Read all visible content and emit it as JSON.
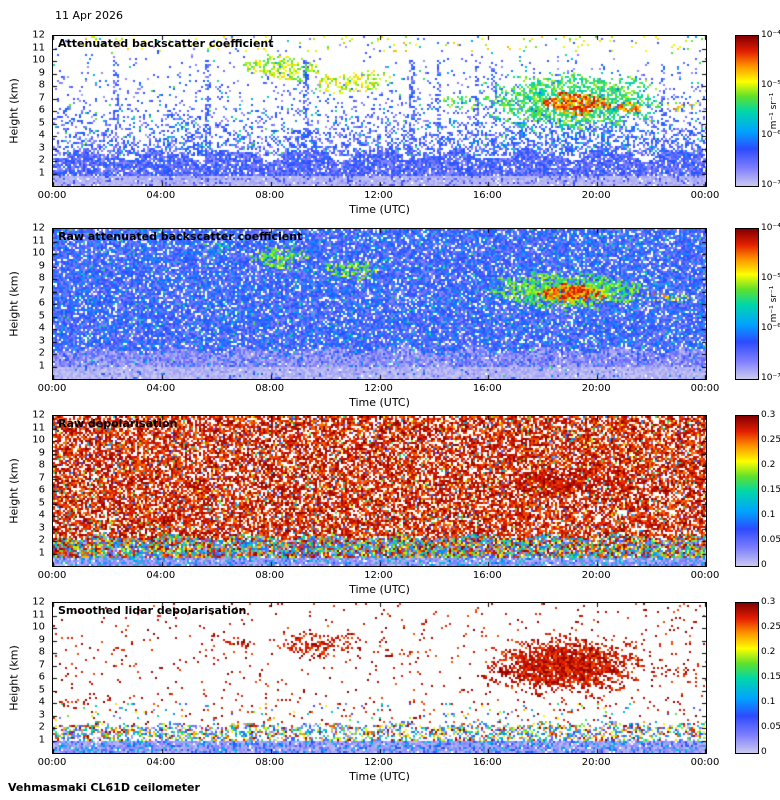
{
  "header": {
    "date": "11 Apr 2026"
  },
  "footer": {
    "instrument": "Vehmasmaki CL61D ceilometer"
  },
  "colormap": {
    "stops": [
      [
        0.0,
        205,
        205,
        238
      ],
      [
        0.12,
        128,
        128,
        255
      ],
      [
        0.25,
        45,
        75,
        255
      ],
      [
        0.37,
        0,
        165,
        255
      ],
      [
        0.5,
        0,
        215,
        170
      ],
      [
        0.6,
        95,
        225,
        45
      ],
      [
        0.7,
        255,
        255,
        0
      ],
      [
        0.8,
        255,
        150,
        0
      ],
      [
        0.9,
        228,
        30,
        0
      ],
      [
        1.0,
        133,
        0,
        0
      ]
    ]
  },
  "chart_data": [
    {
      "type": "heatmap",
      "title": "Attenuated backscatter coefficient",
      "xlabel": "Time (UTC)",
      "ylabel": "Height (km)",
      "xlim_hours": [
        0,
        24
      ],
      "ylim_km": [
        0,
        12
      ],
      "x_ticks": {
        "hours": [
          0,
          4,
          8,
          12,
          16,
          20,
          24
        ],
        "labels": [
          "00:00",
          "04:00",
          "08:00",
          "12:00",
          "16:00",
          "20:00",
          "00:00"
        ]
      },
      "y_ticks_km": [
        1,
        2,
        3,
        4,
        5,
        6,
        7,
        8,
        9,
        10,
        11,
        12
      ],
      "colorbar": {
        "scale": "log",
        "range": [
          1e-07,
          0.0001
        ],
        "unit": "m⁻¹ sr⁻¹",
        "tick_labels": [
          "10⁻⁴",
          "10⁻⁵",
          "10⁻⁶",
          "10⁻⁷"
        ],
        "tick_pos": [
          0,
          0.3333,
          0.6667,
          1
        ]
      },
      "seed": 101,
      "features": [
        {
          "kind": "fade",
          "t0": 0,
          "t1": 24,
          "h0": 2.4,
          "h1": 12,
          "d0": 0.6,
          "d1": 0.012,
          "v0": 0.07,
          "v1": 0.32
        },
        {
          "kind": "fade",
          "t0": 0,
          "t1": 24,
          "h0": 2.4,
          "h1": 12,
          "d0": 0.04,
          "d1": 0.004,
          "v0": 0.35,
          "v1": 0.6
        },
        {
          "kind": "band",
          "t0": 0,
          "t1": 24,
          "h0": 10.7,
          "h1": 12,
          "density": 0.05,
          "v0": 0.6,
          "v1": 0.78
        },
        {
          "kind": "columns",
          "times": [
            2.3,
            5.7,
            9.3,
            13.2,
            14.2,
            15.6,
            16.2,
            22.4
          ],
          "h0": 0,
          "h1": 10,
          "density": 0.4,
          "v0": 0.1,
          "v1": 0.32,
          "colw": 0.09
        },
        {
          "kind": "band",
          "t0": 0,
          "t1": 24,
          "h0": 0.85,
          "h1": 2.5,
          "density": 0.88,
          "v0": 0.08,
          "v1": 0.3,
          "jitter": 0.55
        },
        {
          "kind": "band",
          "t0": 0,
          "t1": 24,
          "h0": 0,
          "h1": 0.85,
          "density": 0.96,
          "v0": 0.01,
          "v1": 0.07
        },
        {
          "kind": "band",
          "t0": 0,
          "t1": 24,
          "h0": 0,
          "h1": 0.85,
          "density": 0.15,
          "v0": 0.12,
          "v1": 0.26
        },
        {
          "kind": "blob",
          "t0": 7.0,
          "t1": 9.8,
          "h0": 8.4,
          "h1": 10.4,
          "density": 0.5,
          "v0": 0.55,
          "v1": 0.75
        },
        {
          "kind": "blob",
          "t0": 9.6,
          "t1": 12.4,
          "h0": 7.4,
          "h1": 9.2,
          "density": 0.45,
          "v0": 0.58,
          "v1": 0.76
        },
        {
          "kind": "blob",
          "t0": 14.2,
          "t1": 15.8,
          "h0": 5.9,
          "h1": 7.3,
          "density": 0.35,
          "v0": 0.5,
          "v1": 0.68
        },
        {
          "kind": "blob",
          "t0": 15.3,
          "t1": 22.6,
          "h0": 2.4,
          "h1": 5.4,
          "density": 0.2,
          "v0": 0.15,
          "v1": 0.42
        },
        {
          "kind": "blob",
          "t0": 15.8,
          "t1": 22.4,
          "h0": 4.6,
          "h1": 9.0,
          "density": 0.7,
          "v0": 0.45,
          "v1": 0.66
        },
        {
          "kind": "blob",
          "t0": 18.0,
          "t1": 20.5,
          "h0": 5.7,
          "h1": 7.5,
          "density": 0.88,
          "v0": 0.72,
          "v1": 0.95
        },
        {
          "kind": "blob",
          "t0": 20.6,
          "t1": 21.7,
          "h0": 5.8,
          "h1": 6.6,
          "density": 0.55,
          "v0": 0.7,
          "v1": 0.9
        },
        {
          "kind": "blob",
          "t0": 22.3,
          "t1": 23.7,
          "h0": 6.0,
          "h1": 6.7,
          "density": 0.3,
          "v0": 0.55,
          "v1": 0.85
        }
      ]
    },
    {
      "type": "heatmap",
      "title": "Raw attenuated backscatter coefficient",
      "xlabel": "Time (UTC)",
      "ylabel": "Height (km)",
      "xlim_hours": [
        0,
        24
      ],
      "ylim_km": [
        0,
        12
      ],
      "x_ticks": {
        "hours": [
          0,
          4,
          8,
          12,
          16,
          20,
          24
        ],
        "labels": [
          "00:00",
          "04:00",
          "08:00",
          "12:00",
          "16:00",
          "20:00",
          "00:00"
        ]
      },
      "y_ticks_km": [
        1,
        2,
        3,
        4,
        5,
        6,
        7,
        8,
        9,
        10,
        11,
        12
      ],
      "colorbar": {
        "scale": "log",
        "range": [
          1e-07,
          0.0001
        ],
        "unit": "m⁻¹ sr⁻¹",
        "tick_labels": [
          "10⁻⁴",
          "10⁻⁵",
          "10⁻⁶",
          "10⁻⁷"
        ],
        "tick_pos": [
          0,
          0.3333,
          0.6667,
          1
        ]
      },
      "seed": 202,
      "features": [
        {
          "kind": "band",
          "t0": 0,
          "t1": 24,
          "h0": 0,
          "h1": 12,
          "density": 0.88,
          "v0": 0.1,
          "v1": 0.35
        },
        {
          "kind": "band",
          "t0": 0,
          "t1": 24,
          "h0": 0,
          "h1": 12,
          "density": 0.025,
          "v0": 0.4,
          "v1": 0.58
        },
        {
          "kind": "band",
          "t0": 0,
          "t1": 24,
          "h0": 0.95,
          "h1": 2.3,
          "density": 0.78,
          "v0": 0.02,
          "v1": 0.17,
          "jitter": 0.35
        },
        {
          "kind": "band",
          "t0": 0,
          "t1": 24,
          "h0": 0,
          "h1": 0.95,
          "density": 0.93,
          "v0": 0.0,
          "v1": 0.08
        },
        {
          "kind": "blob",
          "t0": 5.4,
          "t1": 6.6,
          "h0": 10.2,
          "h1": 11.2,
          "density": 0.3,
          "v0": 0.45,
          "v1": 0.62
        },
        {
          "kind": "blob",
          "t0": 7.2,
          "t1": 9.4,
          "h0": 8.9,
          "h1": 10.7,
          "density": 0.55,
          "v0": 0.5,
          "v1": 0.7
        },
        {
          "kind": "blob",
          "t0": 9.9,
          "t1": 12.0,
          "h0": 7.9,
          "h1": 9.4,
          "density": 0.55,
          "v0": 0.5,
          "v1": 0.72
        },
        {
          "kind": "blob",
          "t0": 16.0,
          "t1": 21.8,
          "h0": 5.7,
          "h1": 8.5,
          "density": 0.82,
          "v0": 0.5,
          "v1": 0.68
        },
        {
          "kind": "blob",
          "t0": 17.8,
          "t1": 20.4,
          "h0": 6.2,
          "h1": 7.6,
          "density": 0.92,
          "v0": 0.72,
          "v1": 0.95
        },
        {
          "kind": "blob",
          "t0": 21.5,
          "t1": 23.8,
          "h0": 6.1,
          "h1": 7.0,
          "density": 0.3,
          "v0": 0.55,
          "v1": 0.85
        }
      ]
    },
    {
      "type": "heatmap",
      "title": "Raw depolarisation",
      "xlabel": "Time (UTC)",
      "ylabel": "Height (km)",
      "xlim_hours": [
        0,
        24
      ],
      "ylim_km": [
        0,
        12
      ],
      "x_ticks": {
        "hours": [
          0,
          4,
          8,
          12,
          16,
          20,
          24
        ],
        "labels": [
          "00:00",
          "04:00",
          "08:00",
          "12:00",
          "16:00",
          "20:00",
          "00:00"
        ]
      },
      "y_ticks_km": [
        1,
        2,
        3,
        4,
        5,
        6,
        7,
        8,
        9,
        10,
        11,
        12
      ],
      "colorbar": {
        "scale": "linear",
        "range": [
          0,
          0.3
        ],
        "unit": "",
        "tick_labels": [
          "0.3",
          "0.25",
          "0.2",
          "0.15",
          "0.1",
          "0.05",
          "0"
        ],
        "tick_pos": [
          0,
          0.1667,
          0.3333,
          0.5,
          0.6667,
          0.8333,
          1
        ]
      },
      "seed": 303,
      "features": [
        {
          "kind": "band",
          "t0": 0,
          "t1": 24,
          "h0": 0.7,
          "h1": 12,
          "density": 0.7,
          "v0": 0.82,
          "v1": 1.0
        },
        {
          "kind": "band",
          "t0": 0,
          "t1": 24,
          "h0": 0.7,
          "h1": 12,
          "density": 0.06,
          "v0": 0.0,
          "v1": 0.75
        },
        {
          "kind": "blob",
          "t0": 16.4,
          "t1": 21.6,
          "h0": 5.6,
          "h1": 7.9,
          "density": 0.55,
          "v0": 0.88,
          "v1": 1.0
        },
        {
          "kind": "band",
          "t0": 0,
          "t1": 24,
          "h0": 0.7,
          "h1": 2.3,
          "density": 0.78,
          "v0": 0.0,
          "v1": 1.0,
          "jitter": 0.3
        },
        {
          "kind": "band",
          "t0": 0,
          "t1": 24,
          "h0": 0,
          "h1": 0.7,
          "density": 0.95,
          "v0": 0.02,
          "v1": 0.14
        },
        {
          "kind": "band",
          "t0": 0,
          "t1": 24,
          "h0": 0,
          "h1": 0.7,
          "density": 0.22,
          "v0": 0.25,
          "v1": 0.5
        }
      ]
    },
    {
      "type": "heatmap",
      "title": "Smoothed lidar depolarisation",
      "xlabel": "Time (UTC)",
      "ylabel": "Height (km)",
      "xlim_hours": [
        0,
        24
      ],
      "ylim_km": [
        0,
        12
      ],
      "x_ticks": {
        "hours": [
          0,
          4,
          8,
          12,
          16,
          20,
          24
        ],
        "labels": [
          "00:00",
          "04:00",
          "08:00",
          "12:00",
          "16:00",
          "20:00",
          "00:00"
        ]
      },
      "y_ticks_km": [
        1,
        2,
        3,
        4,
        5,
        6,
        7,
        8,
        9,
        10,
        11,
        12
      ],
      "colorbar": {
        "scale": "linear",
        "range": [
          0,
          0.3
        ],
        "unit": "",
        "tick_labels": [
          "0.3",
          "0.25",
          "0.2",
          "0.15",
          "0.1",
          "0.05",
          "0"
        ],
        "tick_pos": [
          0,
          0.1667,
          0.3333,
          0.5,
          0.6667,
          0.8333,
          1
        ]
      },
      "seed": 404,
      "features": [
        {
          "kind": "band",
          "t0": 0,
          "t1": 24,
          "h0": 1.6,
          "h1": 12,
          "density": 0.035,
          "v0": 0.85,
          "v1": 1.0
        },
        {
          "kind": "band",
          "t0": 0,
          "t1": 24,
          "h0": 2.2,
          "h1": 4.0,
          "density": 0.04,
          "v0": 0.1,
          "v1": 0.8
        },
        {
          "kind": "blob",
          "t0": 6.2,
          "t1": 7.4,
          "h0": 8.2,
          "h1": 9.2,
          "density": 0.25,
          "v0": 0.85,
          "v1": 1.0
        },
        {
          "kind": "blob",
          "t0": 8.3,
          "t1": 11.5,
          "h0": 7.7,
          "h1": 9.7,
          "density": 0.4,
          "v0": 0.85,
          "v1": 1.0
        },
        {
          "kind": "blob",
          "t0": 12.1,
          "t1": 13.2,
          "h0": 7.5,
          "h1": 8.4,
          "density": 0.22,
          "v0": 0.85,
          "v1": 1.0
        },
        {
          "kind": "blob",
          "t0": 15.8,
          "t1": 21.9,
          "h0": 4.6,
          "h1": 9.4,
          "density": 0.55,
          "v0": 0.85,
          "v1": 1.0
        },
        {
          "kind": "blob",
          "t0": 16.8,
          "t1": 20.8,
          "h0": 5.3,
          "h1": 8.7,
          "density": 0.92,
          "v0": 0.85,
          "v1": 1.0
        },
        {
          "kind": "blob",
          "t0": 21.5,
          "t1": 23.8,
          "h0": 5.9,
          "h1": 7.0,
          "density": 0.15,
          "v0": 0.85,
          "v1": 1.0
        },
        {
          "kind": "blob",
          "t0": 0.2,
          "t1": 1.4,
          "h0": 3.5,
          "h1": 4.6,
          "density": 0.18,
          "v0": 0.85,
          "v1": 1.0
        },
        {
          "kind": "band",
          "t0": 0,
          "t1": 24,
          "h0": 0.9,
          "h1": 2.3,
          "density": 0.5,
          "v0": 0.0,
          "v1": 1.0,
          "jitter": 0.25
        },
        {
          "kind": "band",
          "t0": 0,
          "t1": 24,
          "h0": 0,
          "h1": 0.9,
          "density": 0.95,
          "v0": 0.02,
          "v1": 0.12
        },
        {
          "kind": "band",
          "t0": 0,
          "t1": 24,
          "h0": 0,
          "h1": 0.9,
          "density": 0.28,
          "v0": 0.15,
          "v1": 0.45
        }
      ]
    }
  ]
}
